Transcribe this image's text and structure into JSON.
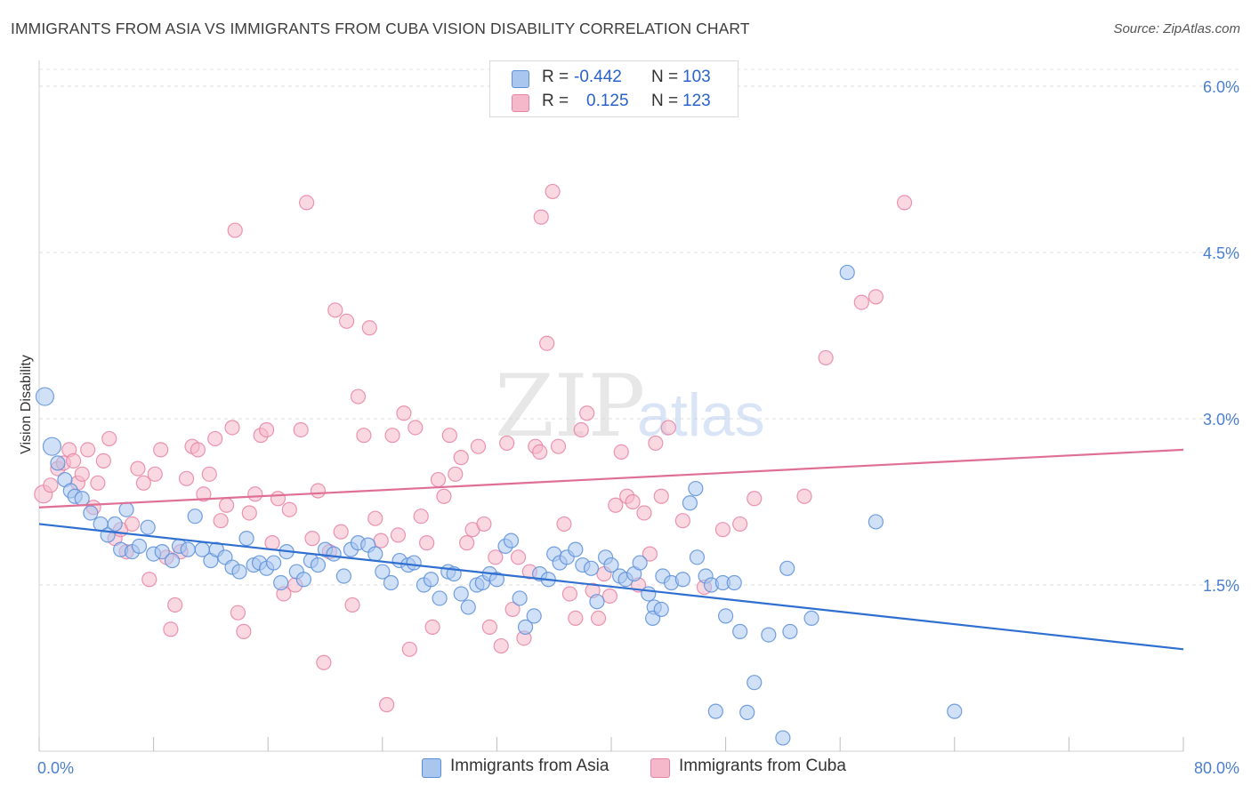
{
  "title": "IMMIGRANTS FROM ASIA VS IMMIGRANTS FROM CUBA VISION DISABILITY CORRELATION CHART",
  "source": "Source: ZipAtlas.com",
  "watermark": {
    "zip": "ZIP",
    "atlas": "atlas"
  },
  "legend_stats": [
    {
      "r_label": "R =",
      "r_value": "-0.442",
      "n_label": "N =",
      "n_value": "103",
      "color": "#a9c6ef"
    },
    {
      "r_label": "R =",
      "r_value": "0.125",
      "n_label": "N =",
      "n_value": "123",
      "color": "#f5b8cb"
    }
  ],
  "chart_data": {
    "type": "scatter",
    "title": "IMMIGRANTS FROM ASIA VS IMMIGRANTS FROM CUBA VISION DISABILITY CORRELATION CHART",
    "xlabel": "",
    "ylabel": "Vision Disability",
    "xlim": [
      0,
      80
    ],
    "ylim": [
      0,
      6.3
    ],
    "x_tick_labels": [
      "0.0%",
      "80.0%"
    ],
    "y_ticks": [
      1.5,
      3.0,
      4.5,
      6.0
    ],
    "y_tick_labels": [
      "1.5%",
      "3.0%",
      "4.5%",
      "6.0%"
    ],
    "grid": "horizontal dashed",
    "legend": "bottom-center",
    "series": [
      {
        "name": "Immigrants from Asia",
        "color": "#5b8fd9",
        "fill": "#a9c6ef",
        "trend": {
          "x": [
            0,
            80
          ],
          "y": [
            2.05,
            0.92
          ],
          "color": "#2f6fd0"
        },
        "points": [
          [
            0.4,
            3.2
          ],
          [
            0.9,
            2.75
          ],
          [
            1.3,
            2.6
          ],
          [
            1.8,
            2.45
          ],
          [
            2.2,
            2.35
          ],
          [
            2.5,
            2.3
          ],
          [
            3.0,
            2.28
          ],
          [
            3.6,
            2.15
          ],
          [
            4.3,
            2.05
          ],
          [
            4.8,
            1.95
          ],
          [
            5.3,
            2.05
          ],
          [
            5.7,
            1.82
          ],
          [
            6.1,
            2.18
          ],
          [
            6.5,
            1.8
          ],
          [
            7.0,
            1.85
          ],
          [
            7.6,
            2.02
          ],
          [
            8.0,
            1.78
          ],
          [
            8.6,
            1.8
          ],
          [
            9.3,
            1.72
          ],
          [
            9.8,
            1.85
          ],
          [
            10.4,
            1.82
          ],
          [
            10.9,
            2.12
          ],
          [
            11.4,
            1.82
          ],
          [
            12.0,
            1.72
          ],
          [
            12.4,
            1.82
          ],
          [
            13.0,
            1.75
          ],
          [
            13.5,
            1.66
          ],
          [
            14.0,
            1.62
          ],
          [
            14.5,
            1.92
          ],
          [
            15.0,
            1.68
          ],
          [
            15.4,
            1.7
          ],
          [
            15.9,
            1.65
          ],
          [
            16.4,
            1.7
          ],
          [
            16.9,
            1.52
          ],
          [
            17.3,
            1.8
          ],
          [
            18.0,
            1.62
          ],
          [
            18.5,
            1.55
          ],
          [
            19.0,
            1.72
          ],
          [
            19.5,
            1.68
          ],
          [
            20.0,
            1.82
          ],
          [
            20.6,
            1.78
          ],
          [
            21.3,
            1.58
          ],
          [
            21.8,
            1.82
          ],
          [
            22.3,
            1.88
          ],
          [
            23.0,
            1.86
          ],
          [
            23.5,
            1.78
          ],
          [
            24.0,
            1.62
          ],
          [
            24.6,
            1.52
          ],
          [
            25.2,
            1.72
          ],
          [
            25.8,
            1.68
          ],
          [
            26.2,
            1.7
          ],
          [
            26.9,
            1.5
          ],
          [
            27.4,
            1.55
          ],
          [
            28.0,
            1.38
          ],
          [
            28.6,
            1.62
          ],
          [
            29.0,
            1.6
          ],
          [
            29.5,
            1.42
          ],
          [
            30.0,
            1.3
          ],
          [
            30.6,
            1.5
          ],
          [
            31.0,
            1.52
          ],
          [
            31.5,
            1.6
          ],
          [
            32.0,
            1.55
          ],
          [
            32.6,
            1.85
          ],
          [
            33.0,
            1.9
          ],
          [
            33.6,
            1.38
          ],
          [
            34.0,
            1.12
          ],
          [
            34.6,
            1.22
          ],
          [
            35.0,
            1.6
          ],
          [
            35.6,
            1.55
          ],
          [
            36.0,
            1.78
          ],
          [
            36.4,
            1.7
          ],
          [
            36.9,
            1.75
          ],
          [
            37.5,
            1.82
          ],
          [
            38.0,
            1.68
          ],
          [
            38.6,
            1.65
          ],
          [
            39.0,
            1.35
          ],
          [
            39.6,
            1.75
          ],
          [
            40.0,
            1.68
          ],
          [
            40.6,
            1.58
          ],
          [
            41.0,
            1.55
          ],
          [
            41.6,
            1.6
          ],
          [
            42.0,
            1.7
          ],
          [
            42.6,
            1.42
          ],
          [
            43.0,
            1.3
          ],
          [
            43.6,
            1.58
          ],
          [
            44.2,
            1.52
          ],
          [
            45.0,
            1.55
          ],
          [
            46.0,
            1.75
          ],
          [
            46.6,
            1.58
          ],
          [
            47.0,
            1.5
          ],
          [
            42.9,
            1.2
          ],
          [
            43.5,
            1.28
          ],
          [
            48.0,
            1.22
          ],
          [
            49.0,
            1.08
          ],
          [
            51.0,
            1.05
          ],
          [
            52.5,
            1.08
          ],
          [
            52.0,
            0.12
          ],
          [
            50.0,
            0.62
          ],
          [
            45.5,
            2.24
          ],
          [
            45.9,
            2.37
          ],
          [
            47.8,
            1.52
          ],
          [
            49.5,
            0.35
          ],
          [
            47.3,
            0.36
          ],
          [
            48.6,
            1.52
          ],
          [
            52.3,
            1.65
          ],
          [
            56.5,
            4.32
          ],
          [
            58.5,
            2.07
          ],
          [
            64.0,
            0.36
          ],
          [
            54.0,
            1.2
          ]
        ]
      },
      {
        "name": "Immigrants from Cuba",
        "color": "#e783a3",
        "fill": "#f5b8cb",
        "trend": {
          "x": [
            0,
            80
          ],
          "y": [
            2.2,
            2.72
          ],
          "color": "#df6f95"
        },
        "points": [
          [
            0.3,
            2.32
          ],
          [
            0.8,
            2.4
          ],
          [
            1.3,
            2.55
          ],
          [
            1.7,
            2.6
          ],
          [
            2.1,
            2.72
          ],
          [
            2.4,
            2.62
          ],
          [
            2.7,
            2.42
          ],
          [
            3.0,
            2.5
          ],
          [
            3.4,
            2.72
          ],
          [
            3.8,
            2.2
          ],
          [
            4.1,
            2.42
          ],
          [
            4.5,
            2.62
          ],
          [
            4.9,
            2.82
          ],
          [
            5.3,
            1.92
          ],
          [
            5.7,
            2.0
          ],
          [
            6.1,
            1.8
          ],
          [
            6.5,
            2.05
          ],
          [
            6.9,
            2.55
          ],
          [
            7.3,
            2.42
          ],
          [
            7.7,
            1.55
          ],
          [
            8.1,
            2.5
          ],
          [
            8.5,
            2.72
          ],
          [
            8.9,
            1.75
          ],
          [
            9.2,
            1.1
          ],
          [
            9.5,
            1.32
          ],
          [
            9.9,
            1.8
          ],
          [
            10.3,
            2.46
          ],
          [
            10.7,
            2.75
          ],
          [
            11.1,
            2.72
          ],
          [
            11.5,
            2.32
          ],
          [
            11.9,
            2.5
          ],
          [
            12.3,
            2.82
          ],
          [
            12.7,
            2.08
          ],
          [
            13.1,
            2.22
          ],
          [
            13.5,
            2.92
          ],
          [
            13.9,
            1.25
          ],
          [
            14.3,
            1.08
          ],
          [
            14.7,
            2.15
          ],
          [
            15.1,
            2.32
          ],
          [
            15.5,
            2.85
          ],
          [
            15.9,
            2.9
          ],
          [
            16.3,
            1.88
          ],
          [
            16.7,
            2.28
          ],
          [
            17.1,
            1.42
          ],
          [
            17.5,
            2.18
          ],
          [
            17.9,
            1.5
          ],
          [
            18.3,
            2.9
          ],
          [
            18.7,
            4.95
          ],
          [
            19.1,
            1.92
          ],
          [
            19.5,
            2.35
          ],
          [
            19.9,
            0.8
          ],
          [
            20.3,
            1.8
          ],
          [
            20.7,
            3.98
          ],
          [
            21.1,
            1.98
          ],
          [
            21.5,
            3.88
          ],
          [
            21.9,
            1.32
          ],
          [
            22.3,
            3.2
          ],
          [
            22.7,
            2.85
          ],
          [
            23.1,
            3.82
          ],
          [
            23.5,
            2.1
          ],
          [
            23.9,
            1.9
          ],
          [
            24.3,
            0.42
          ],
          [
            24.7,
            2.85
          ],
          [
            25.1,
            1.95
          ],
          [
            25.5,
            3.05
          ],
          [
            25.9,
            0.92
          ],
          [
            26.3,
            2.92
          ],
          [
            26.7,
            2.12
          ],
          [
            27.1,
            1.88
          ],
          [
            27.5,
            1.12
          ],
          [
            27.9,
            2.45
          ],
          [
            28.3,
            2.3
          ],
          [
            28.7,
            2.85
          ],
          [
            29.1,
            2.5
          ],
          [
            29.5,
            2.65
          ],
          [
            29.9,
            1.88
          ],
          [
            30.3,
            2.0
          ],
          [
            30.7,
            2.75
          ],
          [
            31.1,
            2.05
          ],
          [
            31.5,
            1.12
          ],
          [
            31.9,
            1.75
          ],
          [
            32.3,
            0.95
          ],
          [
            32.7,
            2.78
          ],
          [
            33.1,
            1.28
          ],
          [
            33.5,
            1.75
          ],
          [
            33.9,
            1.02
          ],
          [
            34.3,
            1.62
          ],
          [
            34.7,
            2.75
          ],
          [
            35.1,
            4.82
          ],
          [
            35.5,
            3.68
          ],
          [
            35.9,
            5.05
          ],
          [
            36.3,
            2.75
          ],
          [
            36.7,
            2.05
          ],
          [
            37.1,
            1.42
          ],
          [
            37.5,
            1.2
          ],
          [
            37.9,
            2.9
          ],
          [
            38.3,
            3.05
          ],
          [
            38.7,
            1.45
          ],
          [
            39.1,
            1.2
          ],
          [
            39.5,
            1.6
          ],
          [
            39.9,
            1.4
          ],
          [
            40.3,
            2.22
          ],
          [
            40.7,
            2.7
          ],
          [
            41.1,
            2.3
          ],
          [
            41.5,
            2.25
          ],
          [
            41.9,
            1.5
          ],
          [
            42.3,
            2.15
          ],
          [
            42.7,
            1.78
          ],
          [
            43.1,
            2.78
          ],
          [
            43.5,
            2.3
          ],
          [
            13.7,
            4.7
          ],
          [
            35.0,
            2.7
          ],
          [
            44.0,
            2.92
          ],
          [
            45.0,
            2.08
          ],
          [
            46.5,
            1.48
          ],
          [
            47.8,
            2.0
          ],
          [
            49.0,
            2.05
          ],
          [
            55.0,
            3.55
          ],
          [
            57.5,
            4.05
          ],
          [
            58.5,
            4.1
          ],
          [
            60.5,
            4.95
          ],
          [
            53.5,
            2.3
          ],
          [
            50.0,
            2.28
          ]
        ]
      }
    ]
  },
  "bottom_legend": [
    {
      "label": "Immigrants from Asia",
      "color": "#a9c6ef"
    },
    {
      "label": "Immigrants from Cuba",
      "color": "#f5b8cb"
    }
  ]
}
